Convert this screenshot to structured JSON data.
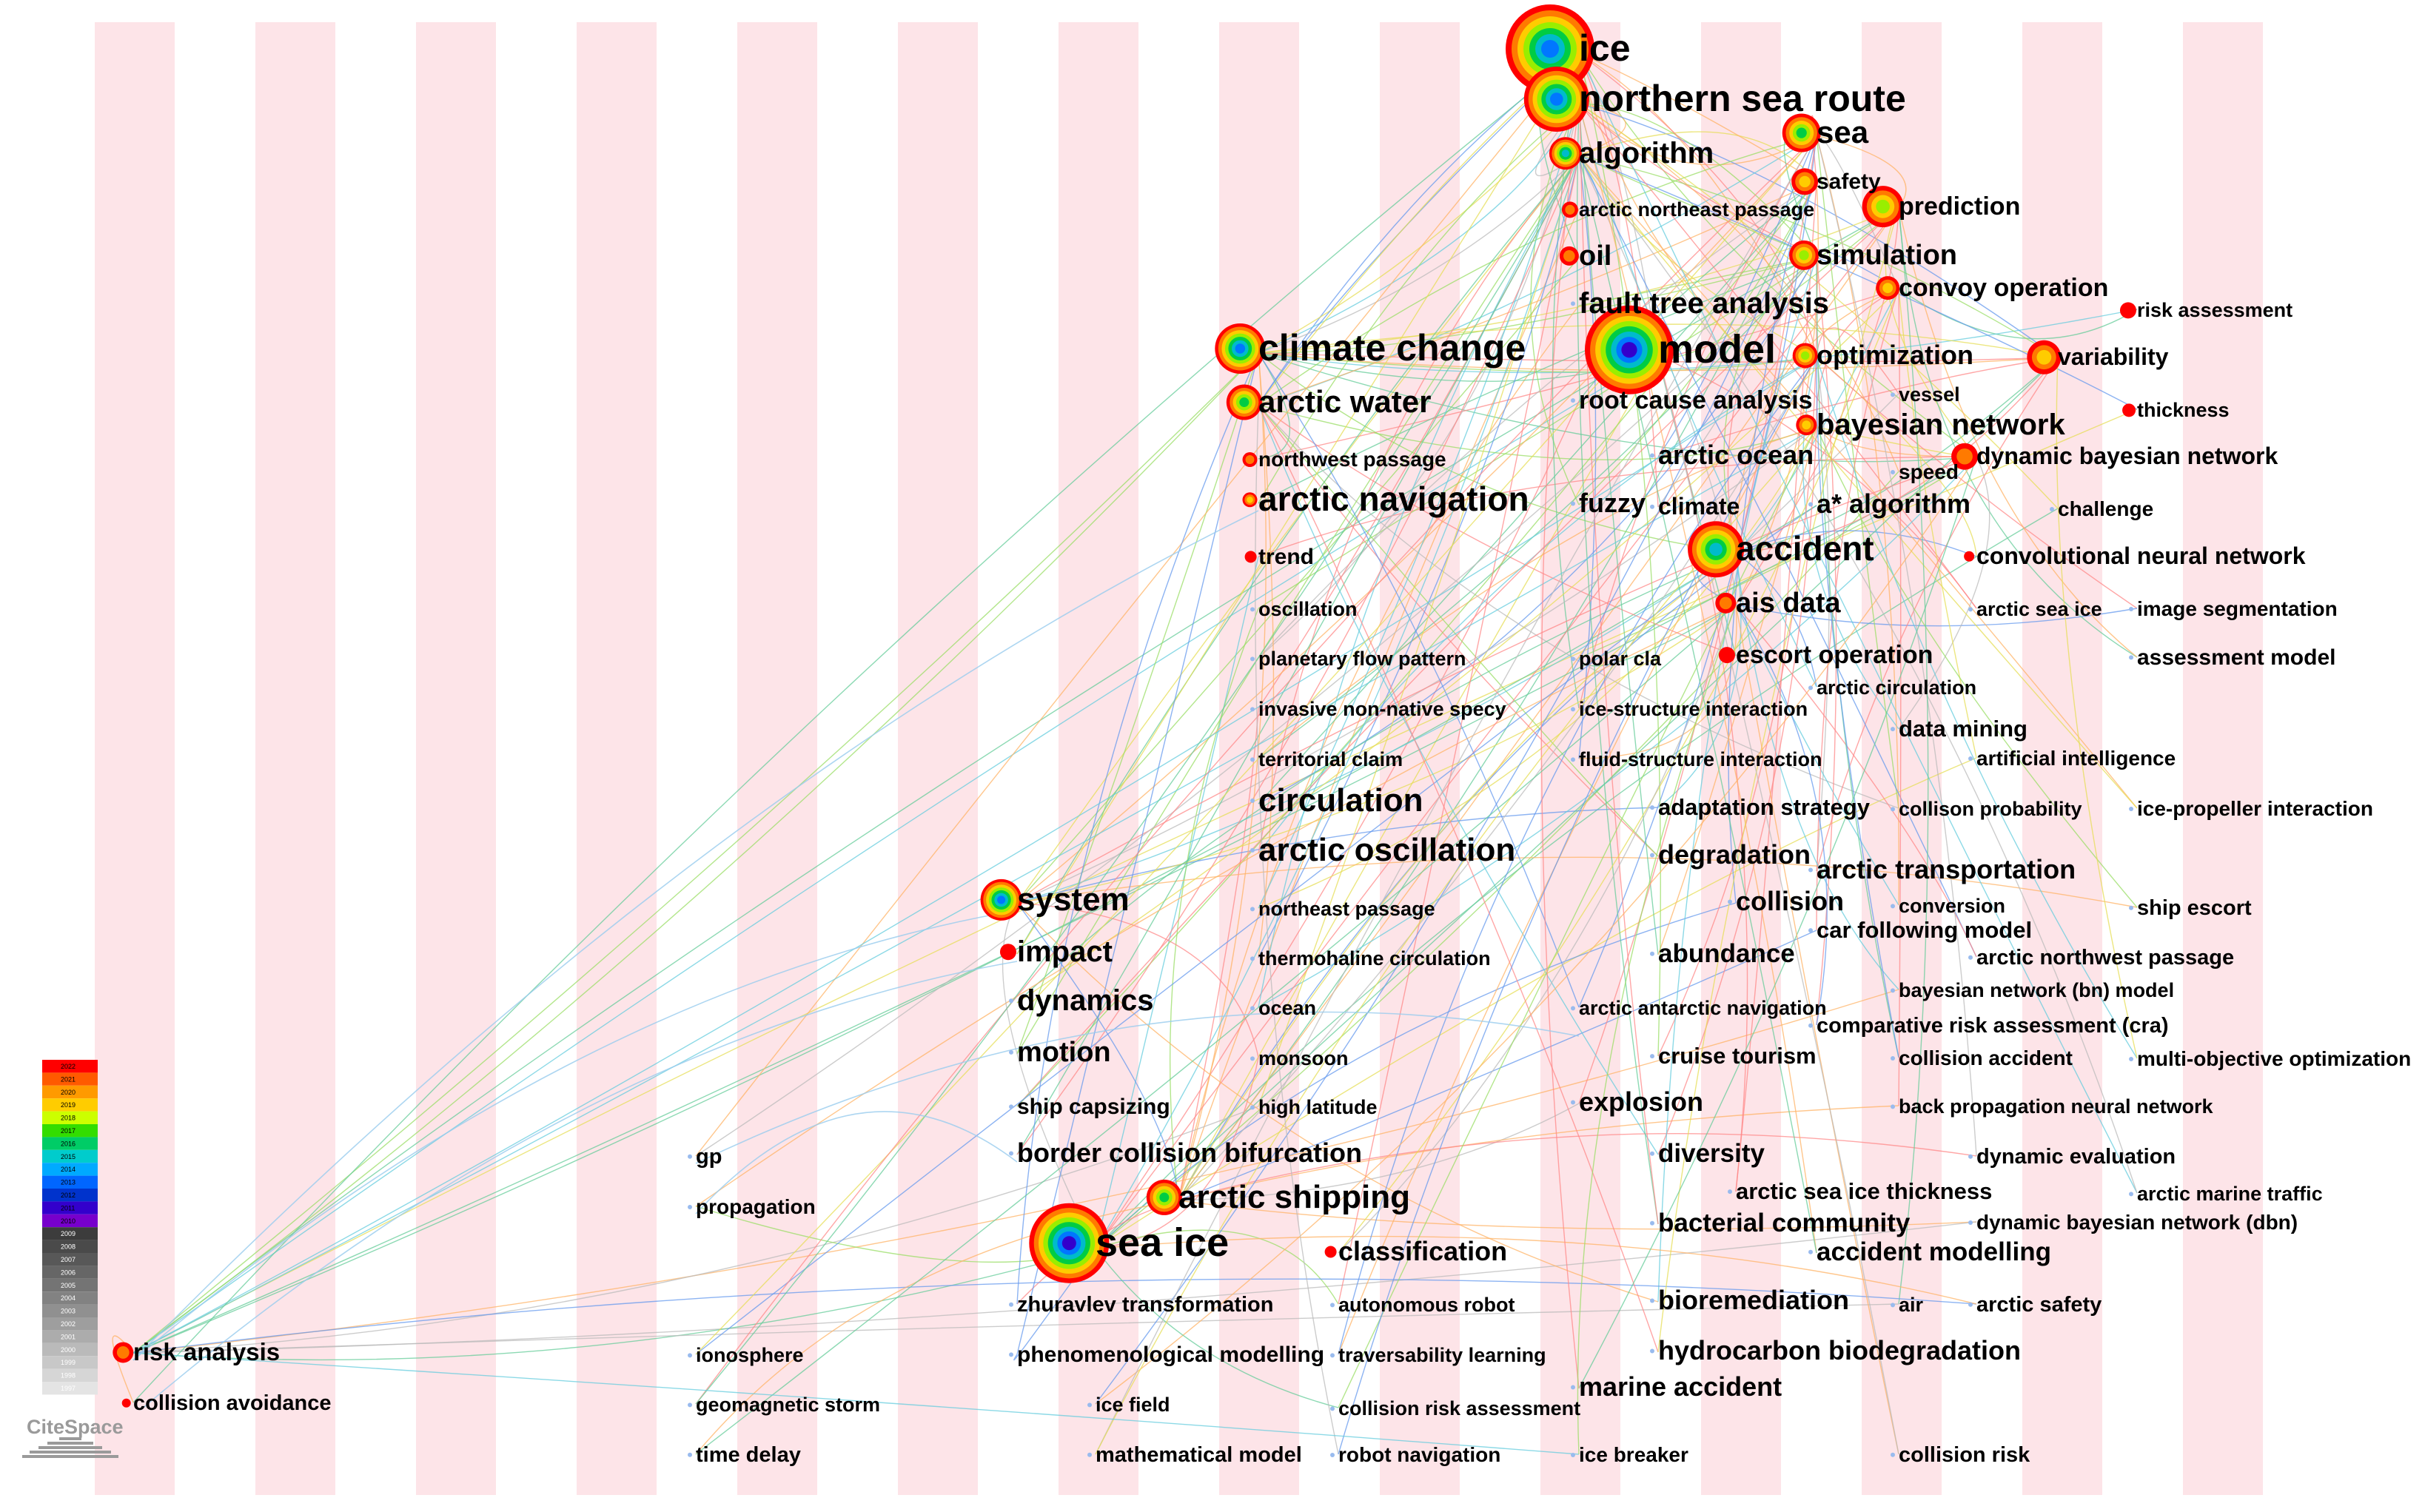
{
  "logo": {
    "text": "CiteSpace"
  },
  "legend": {
    "colors": [
      "#ff0000",
      "#ff5a00",
      "#ff9a00",
      "#ffcc00",
      "#ccff00",
      "#33dd00",
      "#00cc66",
      "#00cccc",
      "#00aaff",
      "#0066ff",
      "#0033cc",
      "#3300cc",
      "#7700cc"
    ],
    "years": [
      "2022",
      "2021",
      "2020",
      "2019",
      "2018",
      "2017",
      "2016",
      "2015",
      "2014",
      "2013",
      "2012",
      "2011",
      "2010",
      "2009",
      "2008",
      "2007",
      "2006",
      "2005",
      "2004",
      "2003",
      "2002",
      "2001",
      "2000",
      "1999",
      "1998",
      "1997"
    ]
  },
  "keywords": {
    "ice": "ice",
    "northern_sea_route": "northern sea route",
    "sea": "sea",
    "algorithm": "algorithm",
    "safety": "safety",
    "prediction": "prediction",
    "arctic_northeast_passage": "arctic northeast passage",
    "oil": "oil",
    "simulation": "simulation",
    "convoy_operation": "convoy operation",
    "fault_tree_analysis": "fault tree analysis",
    "risk_assessment": "risk assessment",
    "climate_change": "climate change",
    "model": "model",
    "optimization": "optimization",
    "variability": "variability",
    "vessel": "vessel",
    "arctic_water": "arctic water",
    "root_cause_analysis": "root cause analysis",
    "thickness": "thickness",
    "bayesian_network": "bayesian network",
    "northwest_passage": "northwest passage",
    "arctic_ocean": "arctic ocean",
    "speed": "speed",
    "dynamic_bayesian_network": "dynamic bayesian network",
    "arctic_navigation": "arctic navigation",
    "fuzzy": "fuzzy",
    "climate": "climate",
    "a_star_algorithm": "a* algorithm",
    "challenge": "challenge",
    "trend": "trend",
    "accident": "accident",
    "convolutional_neural_network": "convolutional neural network",
    "oscillation": "oscillation",
    "ais_data": "ais data",
    "arctic_sea_ice": "arctic sea ice",
    "image_segmentation": "image segmentation",
    "planetary_flow_pattern": "planetary flow pattern",
    "polar_cla": "polar cla",
    "escort_operation": "escort operation",
    "assessment_model": "assessment model",
    "arctic_circulation": "arctic circulation",
    "invasive_non_native_specy": "invasive non-native specy",
    "ice_structure_interaction": "ice-structure interaction",
    "data_mining": "data mining",
    "territorial_claim": "territorial claim",
    "fluid_structure_interaction": "fluid-structure interaction",
    "artificial_intelligence": "artificial intelligence",
    "circulation": "circulation",
    "adaptation_strategy": "adaptation strategy",
    "collison_probability": "collison probability",
    "ice_propeller_interaction": "ice-propeller interaction",
    "arctic_oscillation": "arctic oscillation",
    "degradation": "degradation",
    "arctic_transportation": "arctic transportation",
    "system": "system",
    "northeast_passage": "northeast passage",
    "collision": "collision",
    "conversion": "conversion",
    "ship_escort": "ship escort",
    "car_following_model": "car following model",
    "impact": "impact",
    "thermohaline_circulation": "thermohaline circulation",
    "abundance": "abundance",
    "arctic_northwest_passage": "arctic northwest passage",
    "bn_model": "bayesian network (bn) model",
    "dynamics": "dynamics",
    "ocean": "ocean",
    "arctic_antarctic_navigation": "arctic antarctic navigation",
    "cra": "comparative risk assessment (cra)",
    "motion": "motion",
    "monsoon": "monsoon",
    "cruise_tourism": "cruise tourism",
    "collision_accident": "collision accident",
    "multi_objective_optimization": "multi-objective optimization",
    "ship_capsizing": "ship capsizing",
    "high_latitude": "high latitude",
    "explosion": "explosion",
    "back_propagation_neural_network": "back propagation neural network",
    "gp": "gp",
    "border_collision_bifurcation": "border collision bifurcation",
    "diversity": "diversity",
    "dynamic_evaluation": "dynamic evaluation",
    "propagation": "propagation",
    "arctic_shipping": "arctic shipping",
    "arctic_sea_ice_thickness": "arctic sea ice thickness",
    "arctic_marine_traffic": "arctic marine traffic",
    "bacterial_community": "bacterial community",
    "dbn": "dynamic bayesian network (dbn)",
    "sea_ice": "sea ice",
    "classification": "classification",
    "accident_modelling": "accident modelling",
    "zhuravlev_transformation": "zhuravlev transformation",
    "autonomous_robot": "autonomous robot",
    "bioremediation": "bioremediation",
    "air": "air",
    "arctic_safety": "arctic safety",
    "risk_analysis": "risk analysis",
    "ionosphere": "ionosphere",
    "phenomenological_modelling": "phenomenological modelling",
    "traversability_learning": "traversability learning",
    "hydrocarbon_biodegradation": "hydrocarbon biodegradation",
    "collision_avoidance": "collision avoidance",
    "geomagnetic_storm": "geomagnetic storm",
    "ice_field": "ice field",
    "collision_risk_assessment": "collision risk assessment",
    "marine_accident": "marine accident",
    "time_delay": "time delay",
    "mathematical_model": "mathematical model",
    "robot_navigation": "robot navigation",
    "ice_breaker": "ice breaker",
    "collision_risk": "collision risk"
  }
}
